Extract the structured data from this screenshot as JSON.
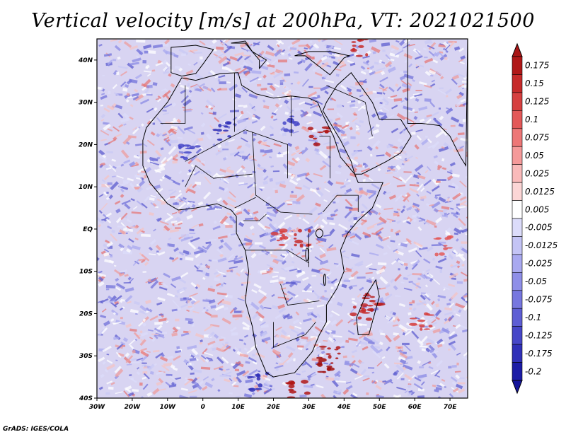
{
  "title": "Vertical velocity [m/s] at 200hPa, VT: 2021021500",
  "credit": "GrADS: IGES/COLA",
  "map": {
    "lon_range": [
      -30,
      75
    ],
    "lat_range": [
      -40,
      45
    ],
    "lon_ticks": [
      "30W",
      "20W",
      "10W",
      "0",
      "10E",
      "20E",
      "30E",
      "40E",
      "50E",
      "60E",
      "70E"
    ],
    "lat_ticks": [
      "40N",
      "30N",
      "20N",
      "10N",
      "EQ",
      "10S",
      "20S",
      "30S",
      "40S"
    ],
    "field_description": "Noisy red/blue shaded vertical velocity field with black country boundaries of Africa, Arabia and southern Europe"
  },
  "colorbar": {
    "labels": [
      "0.175",
      "0.15",
      "0.125",
      "0.1",
      "0.075",
      "0.05",
      "0.025",
      "0.0125",
      "0.005",
      "-0.005",
      "-0.0125",
      "-0.025",
      "-0.05",
      "-0.075",
      "-0.1",
      "-0.125",
      "-0.175",
      "-0.2"
    ],
    "colors": [
      "#b01818",
      "#c62a2a",
      "#d64040",
      "#e35858",
      "#ed7777",
      "#f59a9a",
      "#f9baba",
      "#fcd6d6",
      "#ffffff",
      "#dcdcfa",
      "#c4c4f5",
      "#a9a9f0",
      "#8f8fe8",
      "#7777df",
      "#5e5ed4",
      "#4747c8",
      "#3030b8",
      "#1c1ca6"
    ],
    "top_arrow_color": "#a81616",
    "bottom_arrow_color": "#14149a"
  }
}
